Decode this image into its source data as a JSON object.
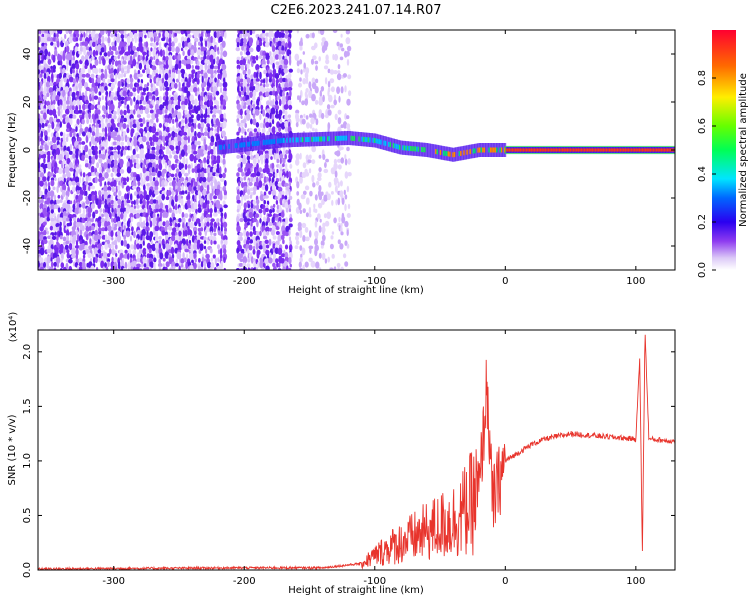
{
  "title": "C2E6.2023.241.07.14.R07",
  "chart_data": [
    {
      "type": "heatmap",
      "name": "spectrogram",
      "xlabel": "Height of straight line (km)",
      "ylabel": "Frequency (Hz)",
      "xlim": [
        -358,
        130
      ],
      "ylim": [
        -50,
        50
      ],
      "xticks": [
        -300,
        -200,
        -100,
        0,
        100
      ],
      "yticks": [
        -40,
        -20,
        0,
        20,
        40
      ],
      "colorbar": {
        "label": "Normalized spectral amplitude",
        "range": [
          0,
          1
        ],
        "ticks": [
          "0.0",
          "0.2",
          "0.4",
          "0.6",
          "0.8"
        ]
      },
      "bands": [
        {
          "x_from": -358,
          "x_to": -215,
          "description": "broadband noise"
        },
        {
          "x_from": -205,
          "x_to": -165,
          "description": "broadband noise"
        },
        {
          "x_from": -160,
          "x_to": -120,
          "description": "faint noise"
        }
      ],
      "signal_line": [
        {
          "x": -220,
          "y": 1
        },
        {
          "x": -170,
          "y": 4
        },
        {
          "x": -120,
          "y": 5
        },
        {
          "x": -100,
          "y": 4
        },
        {
          "x": -80,
          "y": 1
        },
        {
          "x": -60,
          "y": 0
        },
        {
          "x": -40,
          "y": -2
        },
        {
          "x": -20,
          "y": 0
        },
        {
          "x": 0,
          "y": 0
        },
        {
          "x": 130,
          "y": 0
        }
      ]
    },
    {
      "type": "line",
      "name": "snr",
      "xlabel": "Height of straight line (km)",
      "ylabel": "SNR (10 * v/v)",
      "scale_label": "(x10⁴)",
      "xlim": [
        -358,
        130
      ],
      "ylim": [
        0,
        2.2
      ],
      "xticks": [
        -300,
        -200,
        -100,
        0,
        100
      ],
      "yticks": [
        "0.0",
        "0.5",
        "1.0",
        "1.5",
        "2.0"
      ],
      "color": "#e8342c",
      "key_points": [
        {
          "x": -358,
          "y": 0.01
        },
        {
          "x": -200,
          "y": 0.02
        },
        {
          "x": -140,
          "y": 0.02
        },
        {
          "x": -110,
          "y": 0.06
        },
        {
          "x": -90,
          "y": 0.2
        },
        {
          "x": -60,
          "y": 0.35
        },
        {
          "x": -40,
          "y": 0.45
        },
        {
          "x": -30,
          "y": 0.55
        },
        {
          "x": -20,
          "y": 0.7
        },
        {
          "x": -14,
          "y": 1.72
        },
        {
          "x": -10,
          "y": 0.6
        },
        {
          "x": 0,
          "y": 1.0
        },
        {
          "x": 20,
          "y": 1.15
        },
        {
          "x": 30,
          "y": 1.2
        },
        {
          "x": 50,
          "y": 1.25
        },
        {
          "x": 80,
          "y": 1.22
        },
        {
          "x": 100,
          "y": 1.2
        },
        {
          "x": 103,
          "y": 1.95
        },
        {
          "x": 105,
          "y": 0.12
        },
        {
          "x": 107,
          "y": 2.2
        },
        {
          "x": 110,
          "y": 1.2
        },
        {
          "x": 130,
          "y": 1.18
        }
      ]
    }
  ]
}
